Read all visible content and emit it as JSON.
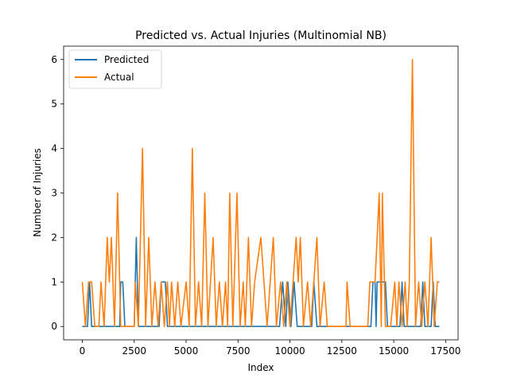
{
  "chart_data": {
    "type": "line",
    "title": "Predicted vs. Actual Injuries (Multinomial NB)",
    "xlabel": "Index",
    "ylabel": "Number of Injuries",
    "xlim": [
      -900,
      18100
    ],
    "ylim": [
      -0.3,
      6.3
    ],
    "xticks": [
      0,
      2500,
      5000,
      7500,
      10000,
      12500,
      15000,
      17500
    ],
    "yticks": [
      0,
      1,
      2,
      3,
      4,
      5,
      6
    ],
    "legend": "top-left",
    "grid": false,
    "series": [
      {
        "name": "Predicted",
        "color": "#1f77b4",
        "points": [
          [
            0,
            0
          ],
          [
            250,
            0
          ],
          [
            350,
            1
          ],
          [
            450,
            0
          ],
          [
            1800,
            0
          ],
          [
            1850,
            1
          ],
          [
            1950,
            1
          ],
          [
            2050,
            0
          ],
          [
            2500,
            0
          ],
          [
            2600,
            2
          ],
          [
            2700,
            0
          ],
          [
            3700,
            0
          ],
          [
            3800,
            1
          ],
          [
            4000,
            1
          ],
          [
            4100,
            0
          ],
          [
            9500,
            0
          ],
          [
            9650,
            1
          ],
          [
            9800,
            0
          ],
          [
            9900,
            1
          ],
          [
            10050,
            0
          ],
          [
            10200,
            1
          ],
          [
            10350,
            0
          ],
          [
            11050,
            0
          ],
          [
            11150,
            1
          ],
          [
            11300,
            0
          ],
          [
            13900,
            0
          ],
          [
            14000,
            1
          ],
          [
            14100,
            1
          ],
          [
            14150,
            0
          ],
          [
            14200,
            1
          ],
          [
            14600,
            1
          ],
          [
            14700,
            0
          ],
          [
            15300,
            0
          ],
          [
            15400,
            1
          ],
          [
            15500,
            0
          ],
          [
            16300,
            0
          ],
          [
            16400,
            1
          ],
          [
            16500,
            0
          ],
          [
            16800,
            0
          ],
          [
            16900,
            1
          ],
          [
            17000,
            0
          ],
          [
            17200,
            0
          ]
        ]
      },
      {
        "name": "Actual",
        "color": "#ff7f0e",
        "points": [
          [
            0,
            1
          ],
          [
            150,
            0
          ],
          [
            300,
            1
          ],
          [
            450,
            1
          ],
          [
            600,
            0
          ],
          [
            800,
            0
          ],
          [
            900,
            1
          ],
          [
            1050,
            0
          ],
          [
            1200,
            2
          ],
          [
            1300,
            1
          ],
          [
            1400,
            2
          ],
          [
            1550,
            0
          ],
          [
            1700,
            3
          ],
          [
            1850,
            0
          ],
          [
            2500,
            0
          ],
          [
            2550,
            1
          ],
          [
            2700,
            0
          ],
          [
            2900,
            4
          ],
          [
            3050,
            0
          ],
          [
            3200,
            2
          ],
          [
            3350,
            0
          ],
          [
            3500,
            1
          ],
          [
            3650,
            0
          ],
          [
            3800,
            1
          ],
          [
            3950,
            0
          ],
          [
            4100,
            1
          ],
          [
            4200,
            0
          ],
          [
            4300,
            1
          ],
          [
            4450,
            0
          ],
          [
            4600,
            1
          ],
          [
            4750,
            0
          ],
          [
            5000,
            1
          ],
          [
            5150,
            0
          ],
          [
            5300,
            4
          ],
          [
            5450,
            0
          ],
          [
            5600,
            1
          ],
          [
            5750,
            0
          ],
          [
            5900,
            3
          ],
          [
            6050,
            0
          ],
          [
            6300,
            2
          ],
          [
            6450,
            0
          ],
          [
            6600,
            1
          ],
          [
            6750,
            0
          ],
          [
            6900,
            1
          ],
          [
            7000,
            0
          ],
          [
            7100,
            3
          ],
          [
            7250,
            0
          ],
          [
            7450,
            3
          ],
          [
            7600,
            0
          ],
          [
            7750,
            1
          ],
          [
            7850,
            0
          ],
          [
            8000,
            2
          ],
          [
            8150,
            0
          ],
          [
            8300,
            1
          ],
          [
            8600,
            2
          ],
          [
            8750,
            1
          ],
          [
            8900,
            0
          ],
          [
            9050,
            1
          ],
          [
            9200,
            2
          ],
          [
            9350,
            0
          ],
          [
            9550,
            1
          ],
          [
            9700,
            0
          ],
          [
            9850,
            1
          ],
          [
            10000,
            0
          ],
          [
            10150,
            1
          ],
          [
            10300,
            2
          ],
          [
            10400,
            1
          ],
          [
            10500,
            2
          ],
          [
            10650,
            0
          ],
          [
            10850,
            1
          ],
          [
            11000,
            0
          ],
          [
            11300,
            2
          ],
          [
            11450,
            0
          ],
          [
            11650,
            1
          ],
          [
            11800,
            0
          ],
          [
            12700,
            0
          ],
          [
            12750,
            1
          ],
          [
            12900,
            0
          ],
          [
            13750,
            0
          ],
          [
            13850,
            1
          ],
          [
            14100,
            1
          ],
          [
            14300,
            3
          ],
          [
            14400,
            0
          ],
          [
            14450,
            3
          ],
          [
            14600,
            0
          ],
          [
            14850,
            0
          ],
          [
            15050,
            1
          ],
          [
            15150,
            0
          ],
          [
            15250,
            1
          ],
          [
            15400,
            0
          ],
          [
            15550,
            1
          ],
          [
            15650,
            0
          ],
          [
            15750,
            1
          ],
          [
            15900,
            6
          ],
          [
            16050,
            0
          ],
          [
            16200,
            1
          ],
          [
            16350,
            0
          ],
          [
            16500,
            1
          ],
          [
            16650,
            0
          ],
          [
            16800,
            2
          ],
          [
            16950,
            0
          ],
          [
            17100,
            1
          ],
          [
            17200,
            1
          ]
        ]
      }
    ]
  }
}
